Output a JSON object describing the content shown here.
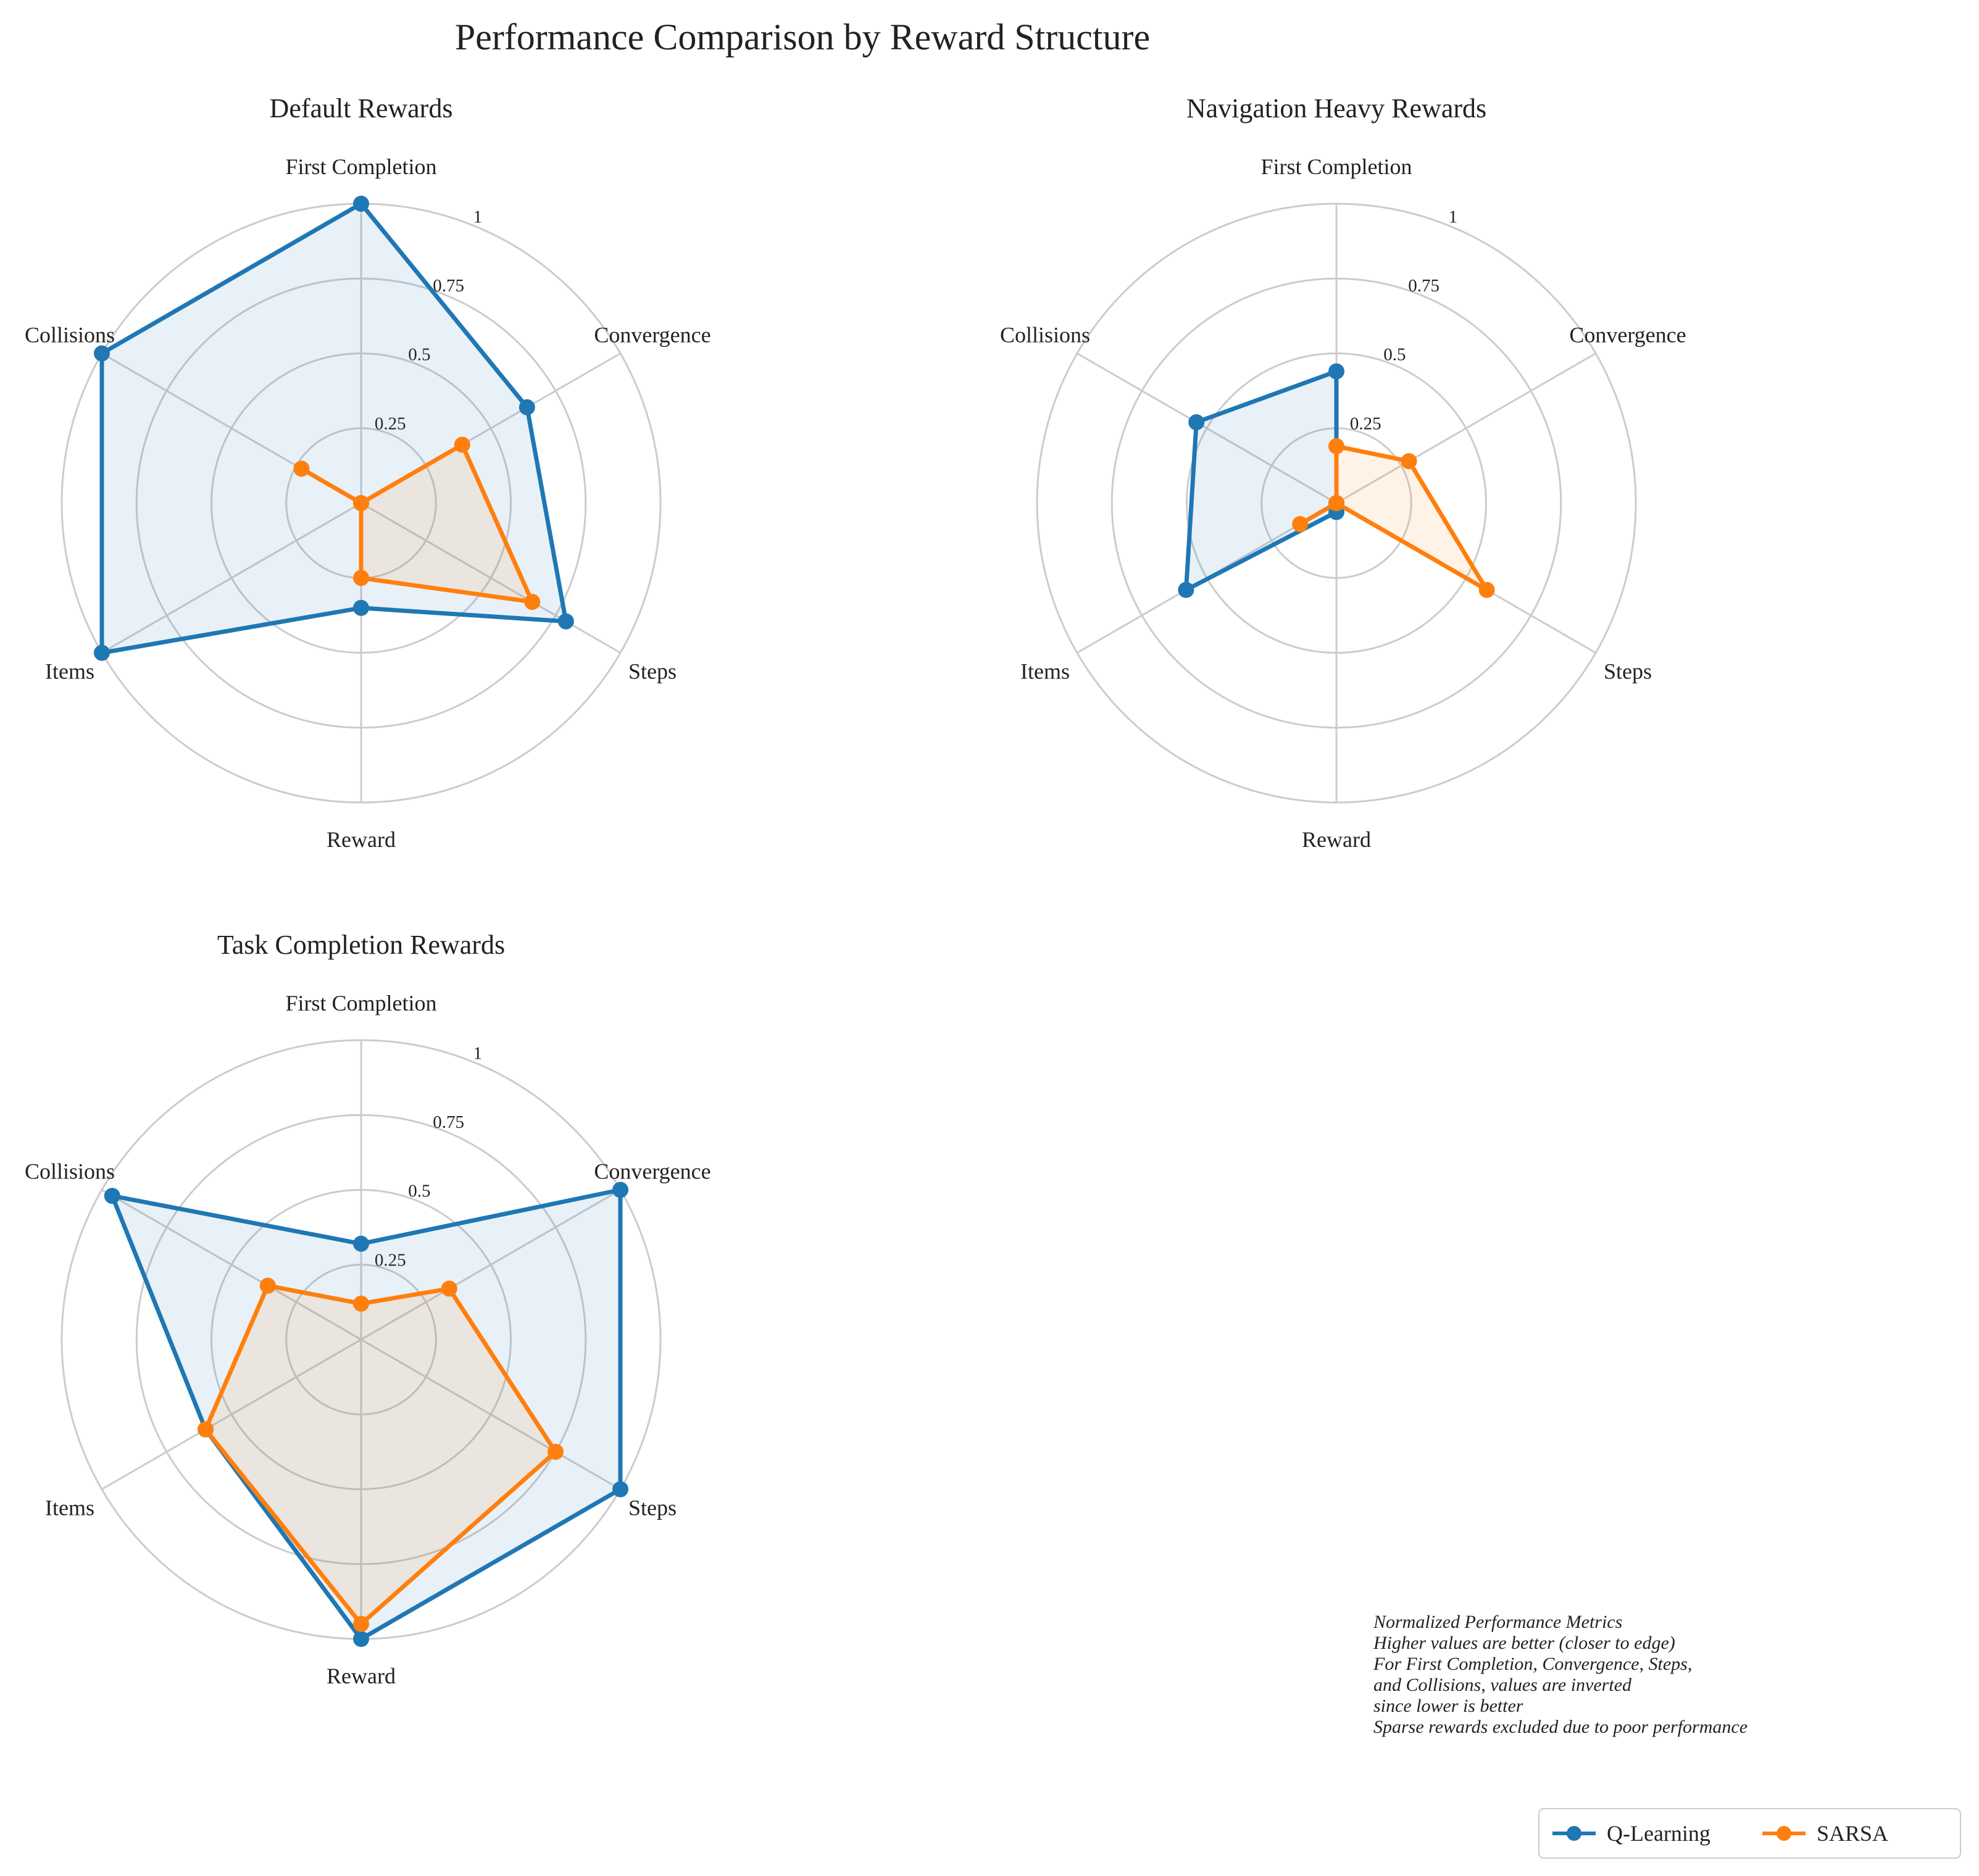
{
  "title": "Performance Comparison by Reward Structure",
  "colors": {
    "q_learning": "#1f77b4",
    "sarsa": "#ff7f0e",
    "grid": "#cccccc"
  },
  "chart_data": [
    {
      "type": "radar",
      "title": "Default Rewards",
      "axes": [
        "First Completion",
        "Convergence",
        "Steps",
        "Reward",
        "Items",
        "Collisions"
      ],
      "r_ticks": [
        "0.25",
        "0.5",
        "0.75",
        "1"
      ],
      "rlim": [
        0,
        1
      ],
      "series": [
        {
          "name": "Q-Learning",
          "values": [
            1.0,
            0.64,
            0.79,
            0.35,
            1.0,
            1.0
          ]
        },
        {
          "name": "SARSA",
          "values": [
            0.0,
            0.39,
            0.66,
            0.25,
            0.0,
            0.23
          ]
        }
      ]
    },
    {
      "type": "radar",
      "title": "Navigation Heavy Rewards",
      "axes": [
        "First Completion",
        "Convergence",
        "Steps",
        "Reward",
        "Items",
        "Collisions"
      ],
      "r_ticks": [
        "0.25",
        "0.5",
        "0.75",
        "1"
      ],
      "rlim": [
        0,
        1
      ],
      "series": [
        {
          "name": "Q-Learning",
          "values": [
            0.44,
            0.0,
            0.0,
            0.03,
            0.58,
            0.54
          ]
        },
        {
          "name": "SARSA",
          "values": [
            0.19,
            0.28,
            0.58,
            0.0,
            0.14,
            0.0
          ]
        }
      ]
    },
    {
      "type": "radar",
      "title": "Task Completion Rewards",
      "axes": [
        "First Completion",
        "Convergence",
        "Steps",
        "Reward",
        "Items",
        "Collisions"
      ],
      "r_ticks": [
        "0.25",
        "0.5",
        "0.75",
        "1"
      ],
      "rlim": [
        0,
        1
      ],
      "series": [
        {
          "name": "Q-Learning",
          "values": [
            0.32,
            1.0,
            1.0,
            1.0,
            0.6,
            0.96
          ]
        },
        {
          "name": "SARSA",
          "values": [
            0.12,
            0.34,
            0.75,
            0.95,
            0.6,
            0.36
          ]
        }
      ]
    }
  ],
  "legend": {
    "position": "lower-right",
    "entries": [
      "Q-Learning",
      "SARSA"
    ]
  },
  "note": [
    "Normalized Performance Metrics",
    "Higher values are better (closer to edge)",
    "For First Completion, Convergence, Steps,",
    "and Collisions, values are inverted",
    "since lower is better",
    "Sparse rewards excluded due to poor performance"
  ]
}
